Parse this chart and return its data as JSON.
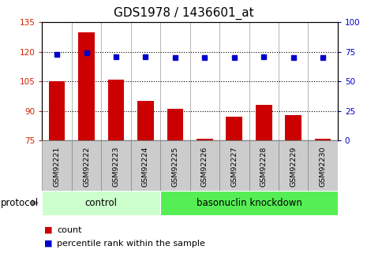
{
  "title": "GDS1978 / 1436601_at",
  "categories": [
    "GSM92221",
    "GSM92222",
    "GSM92223",
    "GSM92224",
    "GSM92225",
    "GSM92226",
    "GSM92227",
    "GSM92228",
    "GSM92229",
    "GSM92230"
  ],
  "red_values": [
    105,
    130,
    106,
    95,
    91,
    76,
    87,
    93,
    88,
    76
  ],
  "blue_values": [
    73,
    74,
    71,
    71,
    70,
    70,
    70,
    71,
    70,
    70
  ],
  "ylim_left": [
    75,
    135
  ],
  "ylim_right": [
    0,
    100
  ],
  "yticks_left": [
    75,
    90,
    105,
    120,
    135
  ],
  "yticks_right": [
    0,
    25,
    50,
    75,
    100
  ],
  "hlines": [
    90,
    105,
    120
  ],
  "bar_color": "#cc0000",
  "dot_color": "#0000cc",
  "n_control": 4,
  "n_knockdown": 6,
  "control_label": "control",
  "knockdown_label": "basonuclin knockdown",
  "protocol_label": "protocol",
  "legend_red": "count",
  "legend_blue": "percentile rank within the sample",
  "control_color": "#ccffcc",
  "knockdown_color": "#55ee55",
  "title_fontsize": 11,
  "tick_fontsize": 7.5,
  "label_fontsize": 8.5
}
